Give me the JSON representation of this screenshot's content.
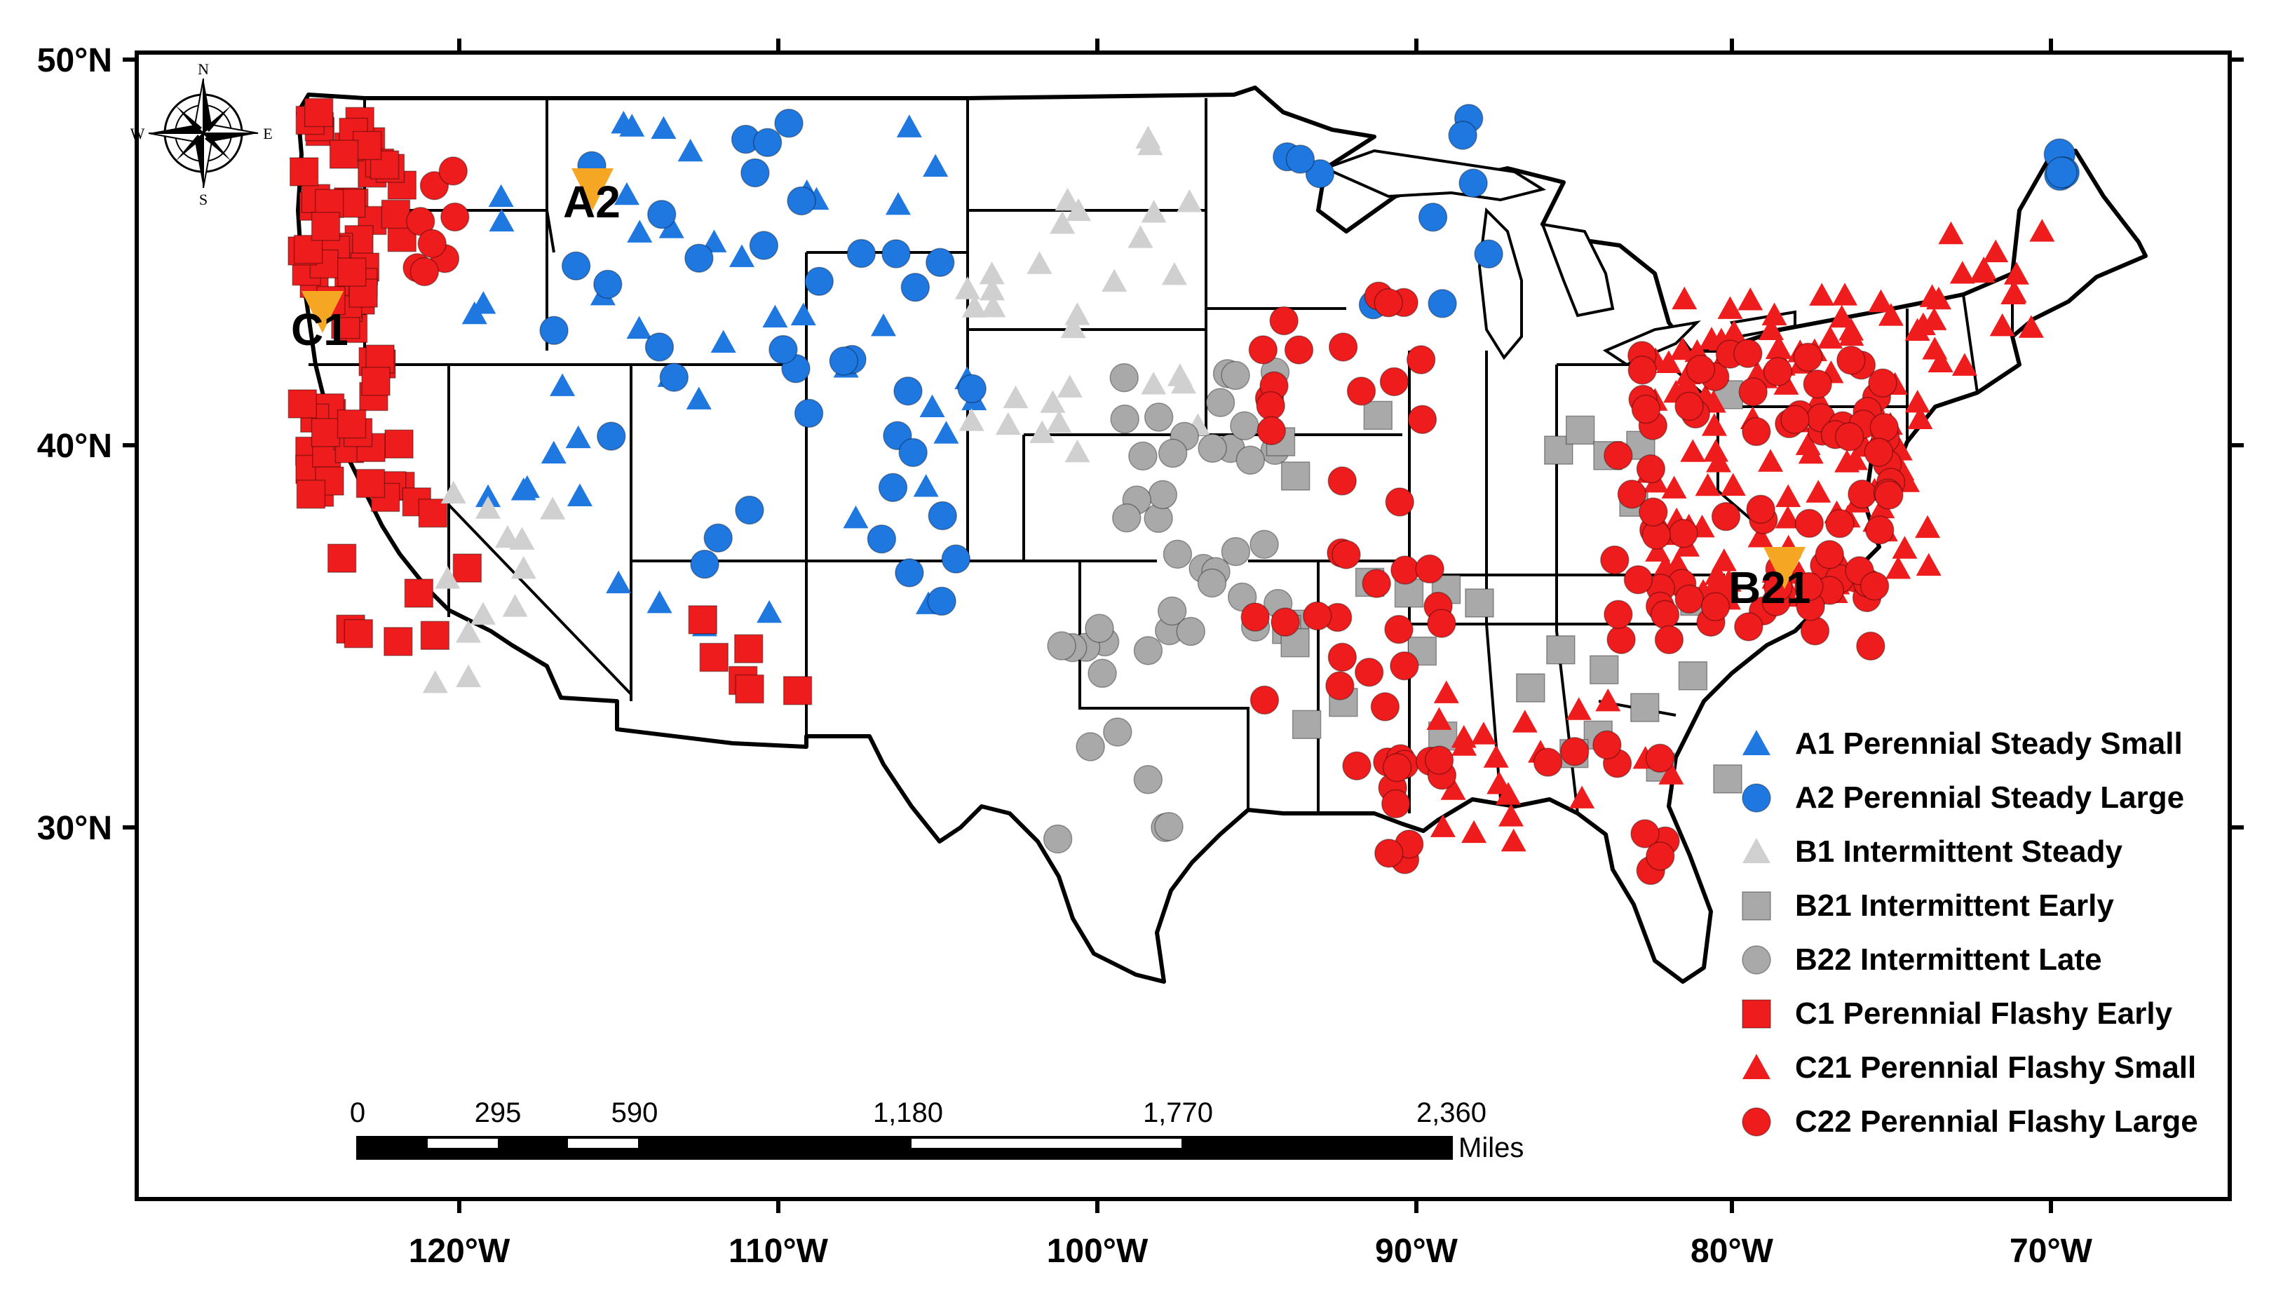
{
  "map": {
    "axes": {
      "lat_ticks": [
        "50°N",
        "40°N",
        "30°N"
      ],
      "lon_ticks": [
        "120°W",
        "110°W",
        "100°W",
        "90°W",
        "80°W",
        "70°W"
      ]
    },
    "compass": {
      "n": "N",
      "s": "S",
      "e": "E",
      "w": "W"
    },
    "labels": {
      "a2": "A2",
      "c1": "C1",
      "b21": "B21"
    },
    "colors": {
      "blue": "#1f77e0",
      "red": "#ee1c1c",
      "gray_light": "#d0d0d0",
      "gray": "#a9a9a9",
      "orange": "#f5a623"
    },
    "legend": [
      {
        "label": "A1 Perennial Steady Small",
        "shape": "triangle",
        "color": "#1f77e0"
      },
      {
        "label": "A2 Perennial Steady Large",
        "shape": "circle",
        "color": "#1f77e0"
      },
      {
        "label": "B1 Intermittent Steady",
        "shape": "triangle",
        "color": "#d0d0d0"
      },
      {
        "label": "B21 Intermittent Early",
        "shape": "square",
        "color": "#a9a9a9"
      },
      {
        "label": "B22 Intermittent Late",
        "shape": "circle",
        "color": "#a9a9a9"
      },
      {
        "label": "C1 Perennial Flashy Early",
        "shape": "square",
        "color": "#ee1c1c"
      },
      {
        "label": "C21 Perennial Flashy Small",
        "shape": "triangle",
        "color": "#ee1c1c"
      },
      {
        "label": "C22  Perennial Flashy Large",
        "shape": "circle",
        "color": "#ee1c1c"
      }
    ],
    "scale_bar": {
      "labels": [
        "0",
        "295",
        "590",
        "1,180",
        "1,770",
        "2,360"
      ],
      "unit": "Miles"
    }
  }
}
